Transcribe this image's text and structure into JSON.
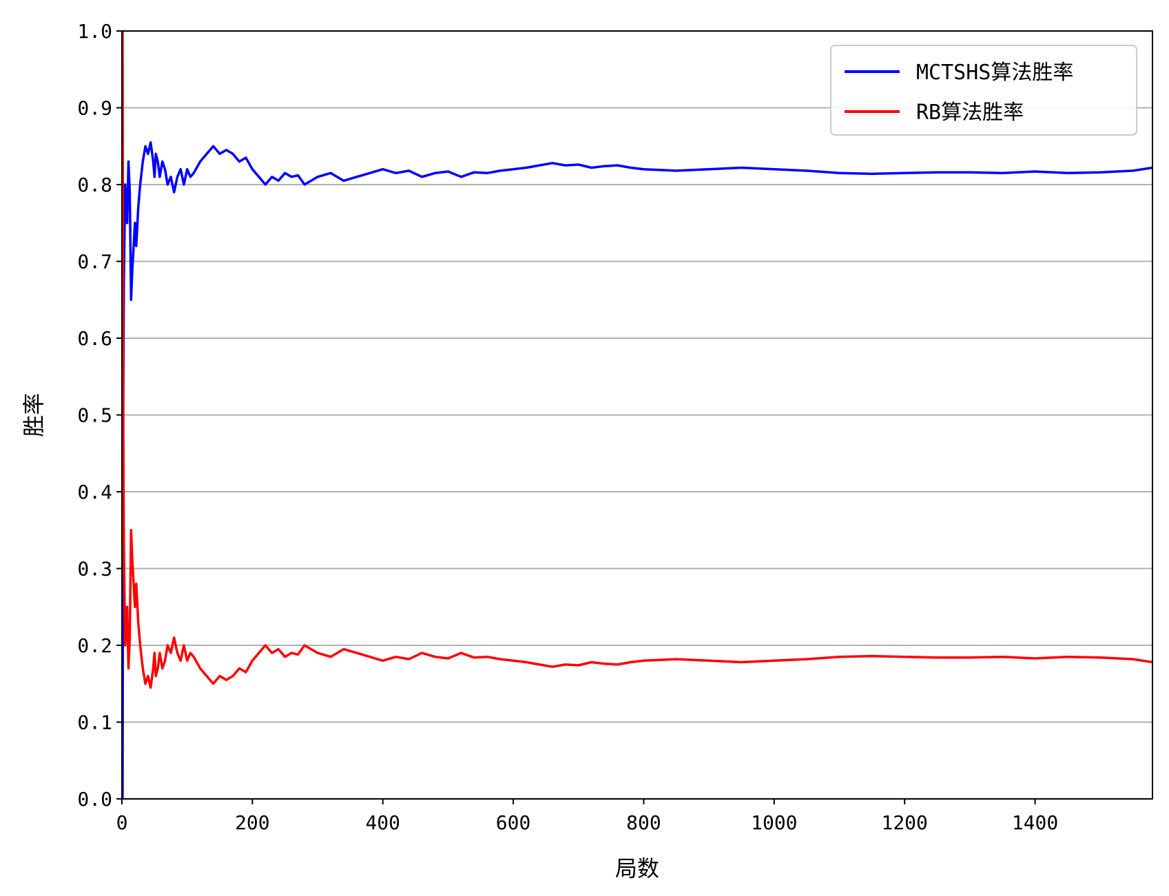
{
  "chart_data": {
    "type": "line",
    "title": "",
    "xlabel": "局数",
    "ylabel": "胜率",
    "xlim": [
      0,
      1580
    ],
    "ylim": [
      0,
      1
    ],
    "x_ticks": [
      0,
      200,
      400,
      600,
      800,
      1000,
      1200,
      1400
    ],
    "x_tick_labels": [
      "0",
      "200",
      "400",
      "600",
      "800",
      "1000",
      "1200",
      "1400"
    ],
    "y_ticks": [
      0,
      0.1,
      0.2,
      0.3,
      0.4,
      0.5,
      0.6,
      0.7,
      0.8,
      0.9,
      1.0
    ],
    "y_tick_labels": [
      "0.0",
      "0.1",
      "0.2",
      "0.3",
      "0.4",
      "0.5",
      "0.6",
      "0.7",
      "0.8",
      "0.9",
      "1.0"
    ],
    "grid": "horizontal",
    "legend_position": "top-right",
    "series": [
      {
        "name": "MCTSHS算法胜率",
        "color": "#0000ff",
        "x": [
          1,
          2,
          3,
          5,
          8,
          10,
          12,
          14,
          16,
          18,
          20,
          22,
          25,
          28,
          32,
          36,
          40,
          44,
          48,
          50,
          52,
          55,
          58,
          62,
          66,
          70,
          75,
          80,
          85,
          90,
          95,
          100,
          105,
          110,
          120,
          130,
          140,
          150,
          160,
          170,
          180,
          190,
          200,
          210,
          220,
          230,
          240,
          250,
          260,
          270,
          280,
          290,
          300,
          320,
          340,
          360,
          380,
          400,
          420,
          440,
          460,
          480,
          500,
          520,
          540,
          560,
          580,
          600,
          620,
          640,
          660,
          680,
          700,
          720,
          740,
          760,
          780,
          800,
          850,
          900,
          950,
          1000,
          1050,
          1100,
          1150,
          1200,
          1250,
          1300,
          1350,
          1400,
          1450,
          1500,
          1550,
          1580
        ],
        "y": [
          0.0,
          0.5,
          0.67,
          0.8,
          0.75,
          0.83,
          0.79,
          0.65,
          0.69,
          0.72,
          0.75,
          0.72,
          0.77,
          0.8,
          0.83,
          0.85,
          0.84,
          0.855,
          0.83,
          0.81,
          0.84,
          0.83,
          0.81,
          0.83,
          0.82,
          0.8,
          0.81,
          0.79,
          0.81,
          0.82,
          0.8,
          0.82,
          0.81,
          0.815,
          0.83,
          0.84,
          0.85,
          0.84,
          0.845,
          0.84,
          0.83,
          0.835,
          0.82,
          0.81,
          0.8,
          0.81,
          0.805,
          0.815,
          0.81,
          0.812,
          0.8,
          0.805,
          0.81,
          0.815,
          0.805,
          0.81,
          0.815,
          0.82,
          0.815,
          0.818,
          0.81,
          0.815,
          0.817,
          0.81,
          0.816,
          0.815,
          0.818,
          0.82,
          0.822,
          0.825,
          0.828,
          0.825,
          0.826,
          0.822,
          0.824,
          0.825,
          0.822,
          0.82,
          0.818,
          0.82,
          0.822,
          0.82,
          0.818,
          0.815,
          0.814,
          0.815,
          0.816,
          0.816,
          0.815,
          0.817,
          0.815,
          0.816,
          0.818,
          0.822
        ]
      },
      {
        "name": "RB算法胜率",
        "color": "#ff0000",
        "x": [
          1,
          2,
          3,
          5,
          8,
          10,
          12,
          14,
          16,
          18,
          20,
          22,
          25,
          28,
          32,
          36,
          40,
          44,
          48,
          50,
          52,
          55,
          58,
          62,
          66,
          70,
          75,
          80,
          85,
          90,
          95,
          100,
          105,
          110,
          120,
          130,
          140,
          150,
          160,
          170,
          180,
          190,
          200,
          210,
          220,
          230,
          240,
          250,
          260,
          270,
          280,
          290,
          300,
          320,
          340,
          360,
          380,
          400,
          420,
          440,
          460,
          480,
          500,
          520,
          540,
          560,
          580,
          600,
          620,
          640,
          660,
          680,
          700,
          720,
          740,
          760,
          780,
          800,
          850,
          900,
          950,
          1000,
          1050,
          1100,
          1150,
          1200,
          1250,
          1300,
          1350,
          1400,
          1450,
          1500,
          1550,
          1580
        ],
        "y": [
          1.0,
          0.5,
          0.33,
          0.2,
          0.25,
          0.17,
          0.21,
          0.35,
          0.31,
          0.28,
          0.25,
          0.28,
          0.23,
          0.2,
          0.17,
          0.15,
          0.16,
          0.145,
          0.17,
          0.19,
          0.16,
          0.17,
          0.19,
          0.17,
          0.18,
          0.2,
          0.19,
          0.21,
          0.19,
          0.18,
          0.2,
          0.18,
          0.19,
          0.185,
          0.17,
          0.16,
          0.15,
          0.16,
          0.155,
          0.16,
          0.17,
          0.165,
          0.18,
          0.19,
          0.2,
          0.19,
          0.195,
          0.185,
          0.19,
          0.188,
          0.2,
          0.195,
          0.19,
          0.185,
          0.195,
          0.19,
          0.185,
          0.18,
          0.185,
          0.182,
          0.19,
          0.185,
          0.183,
          0.19,
          0.184,
          0.185,
          0.182,
          0.18,
          0.178,
          0.175,
          0.172,
          0.175,
          0.174,
          0.178,
          0.176,
          0.175,
          0.178,
          0.18,
          0.182,
          0.18,
          0.178,
          0.18,
          0.182,
          0.185,
          0.186,
          0.185,
          0.184,
          0.184,
          0.185,
          0.183,
          0.185,
          0.184,
          0.182,
          0.178
        ]
      }
    ]
  }
}
